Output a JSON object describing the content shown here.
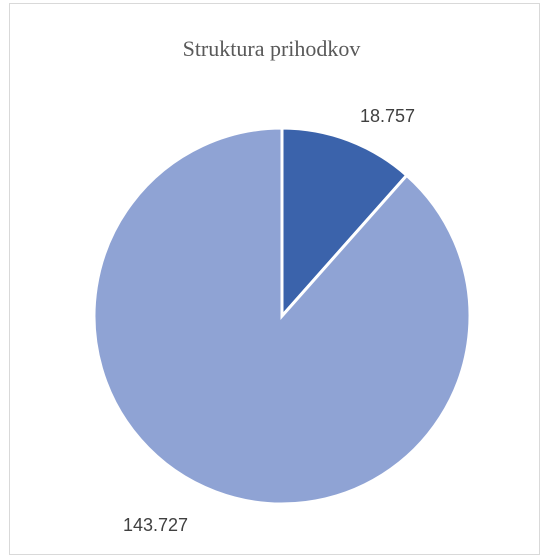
{
  "chart_data": {
    "type": "pie",
    "title": "Struktura prihodkov",
    "categories": [
      "",
      ""
    ],
    "values": [
      18.757,
      143.727
    ],
    "data_labels": [
      "18.757",
      "143.727"
    ],
    "colors": [
      "#3b63ab",
      "#8fa3d4"
    ],
    "slice_border": "#ffffff",
    "start_angle_deg": 0,
    "direction": "clockwise",
    "legend": "none"
  }
}
